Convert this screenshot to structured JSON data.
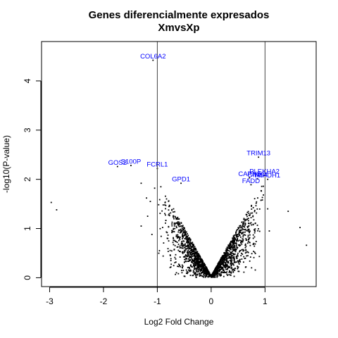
{
  "chart_data": {
    "type": "scatter",
    "title": "Genes diferencialmente expresados",
    "subtitle": "XmvsXp",
    "xlabel": "Log2 Fold Change",
    "ylabel": "-log10(P-value)",
    "xlim": [
      -3.15,
      1.95
    ],
    "ylim": [
      -0.18,
      4.8
    ],
    "xticks": [
      -3,
      -2,
      -1,
      0,
      1
    ],
    "yticks": [
      0,
      1,
      2,
      3,
      4
    ],
    "vlines": [
      -1,
      1
    ],
    "grid": false,
    "point_color": "#000000",
    "label_color": "#0000ff",
    "labeled_genes": [
      {
        "name": "COL6A2",
        "x": -1.08,
        "y": 4.5
      },
      {
        "name": "GOS2",
        "x": -1.74,
        "y": 2.34
      },
      {
        "name": "S100P",
        "x": -1.49,
        "y": 2.36
      },
      {
        "name": "FCRL1",
        "x": -1.0,
        "y": 2.3
      },
      {
        "name": "GPD1",
        "x": -0.56,
        "y": 2.0
      },
      {
        "name": "TRIM13",
        "x": 0.88,
        "y": 2.53
      },
      {
        "name": "PLEKHA2",
        "x": 0.99,
        "y": 2.16
      },
      {
        "name": "CAPN3",
        "x": 0.71,
        "y": 2.11
      },
      {
        "name": "GINS4",
        "x": 0.86,
        "y": 2.09
      },
      {
        "name": "IMPDH1",
        "x": 1.05,
        "y": 2.08
      },
      {
        "name": "FADD",
        "x": 0.74,
        "y": 1.97
      }
    ],
    "outliers": [
      {
        "x": -2.97,
        "y": 1.53
      },
      {
        "x": -2.87,
        "y": 1.38
      },
      {
        "x": -1.3,
        "y": 1.92
      },
      {
        "x": -1.3,
        "y": 1.05
      },
      {
        "x": -1.2,
        "y": 1.62
      },
      {
        "x": -1.13,
        "y": 1.55
      },
      {
        "x": -1.18,
        "y": 1.25
      },
      {
        "x": -1.1,
        "y": 0.88
      },
      {
        "x": -1.05,
        "y": 1.82
      },
      {
        "x": 1.43,
        "y": 1.35
      },
      {
        "x": 1.65,
        "y": 1.02
      },
      {
        "x": 1.77,
        "y": 0.66
      },
      {
        "x": 1.08,
        "y": 0.95
      },
      {
        "x": 1.05,
        "y": 1.4
      }
    ]
  }
}
